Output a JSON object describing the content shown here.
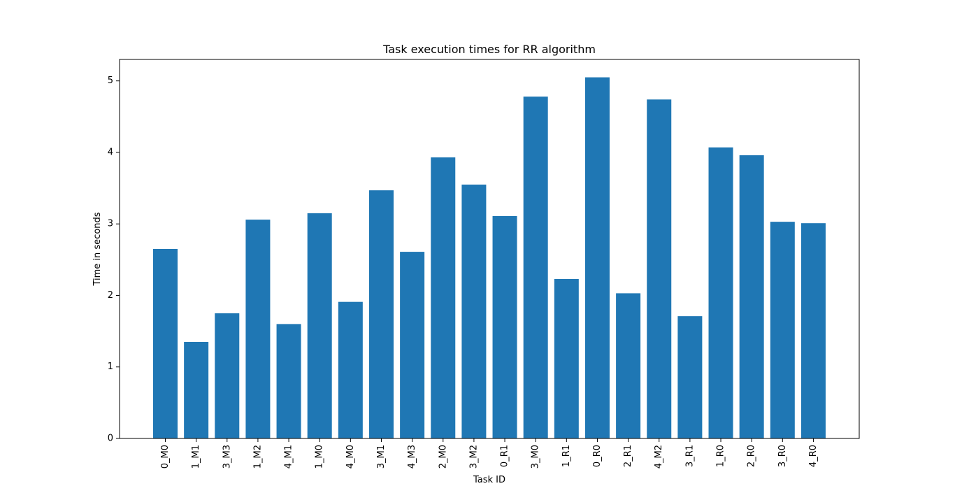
{
  "chart_data": {
    "type": "bar",
    "title": "Task execution times for RR algorithm",
    "xlabel": "Task ID",
    "ylabel": "Time in seconds",
    "categories": [
      "0_M0",
      "1_M1",
      "3_M3",
      "1_M2",
      "4_M1",
      "1_M0",
      "4_M0",
      "3_M1",
      "4_M3",
      "2_M0",
      "3_M2",
      "0_R1",
      "3_M0",
      "1_R1",
      "0_R0",
      "2_R1",
      "4_M2",
      "3_R1",
      "1_R0",
      "2_R0",
      "3_R0",
      "4_R0"
    ],
    "values": [
      2.65,
      1.35,
      1.75,
      3.06,
      1.6,
      3.15,
      1.91,
      3.47,
      2.61,
      3.93,
      3.55,
      3.11,
      4.78,
      2.23,
      5.05,
      2.03,
      4.74,
      1.71,
      4.07,
      3.96,
      3.03,
      3.01
    ],
    "ylim": [
      0,
      5.3
    ],
    "yticks": [
      0,
      1,
      2,
      3,
      4,
      5
    ],
    "grid": false,
    "bar_color": "#1f77b4"
  }
}
